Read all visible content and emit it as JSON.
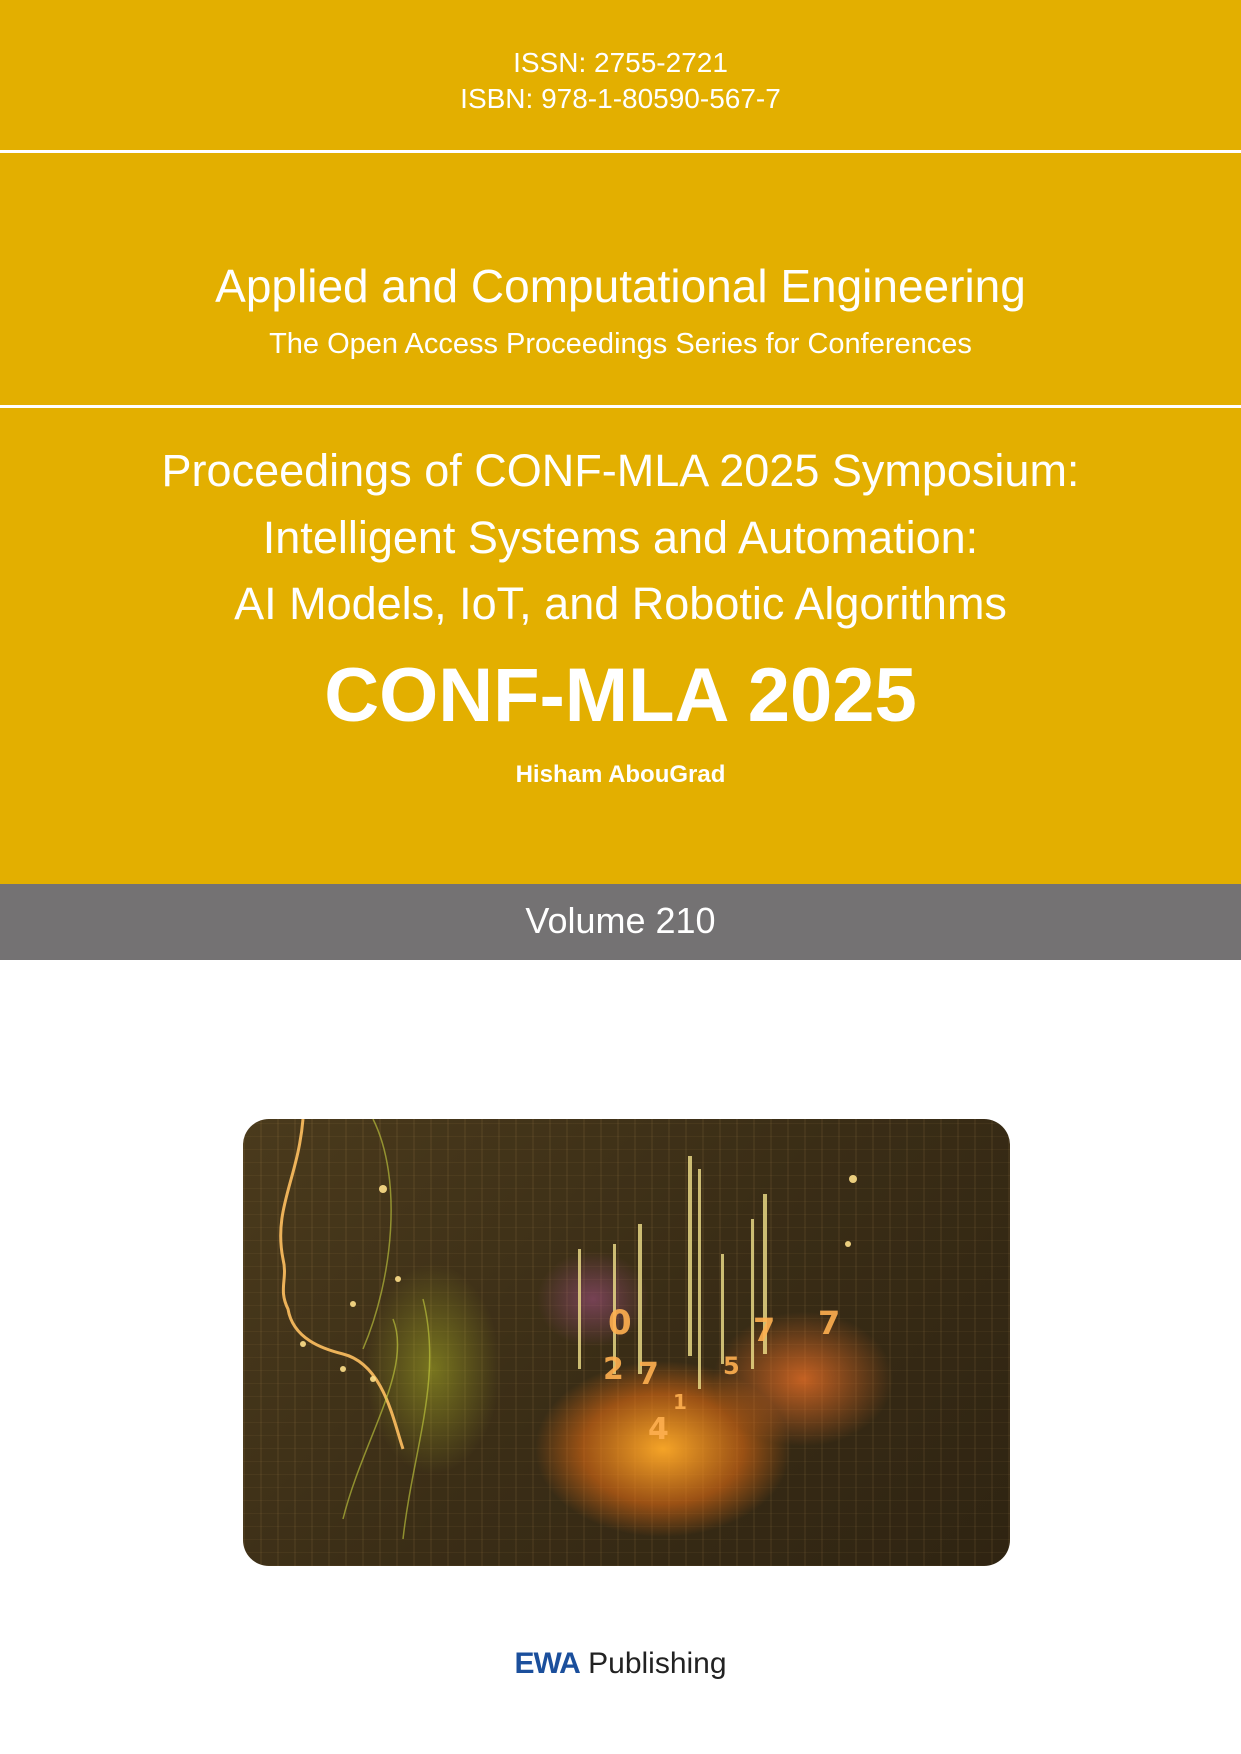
{
  "header": {
    "issn": "ISSN: 2755-2721",
    "isbn": "ISBN:  978-1-80590-567-7"
  },
  "journal": {
    "title": "Applied and Computational Engineering",
    "subtitle": "The Open Access Proceedings Series for Conferences"
  },
  "proceedings": {
    "lines": [
      "Proceedings of CONF-MLA 2025 Symposium:",
      "Intelligent Systems and Automation:",
      "AI Models, IoT, and Robotic Algorithms"
    ],
    "conference": "CONF-MLA 2025",
    "editor": "Hisham AbouGrad"
  },
  "volume": "Volume 210",
  "publisher": {
    "brand": "EWA",
    "name": "Publishing"
  },
  "colors": {
    "background_accent": "#e3af00",
    "volume_band": "#747273",
    "publisher_brand": "#1b4f9c"
  }
}
